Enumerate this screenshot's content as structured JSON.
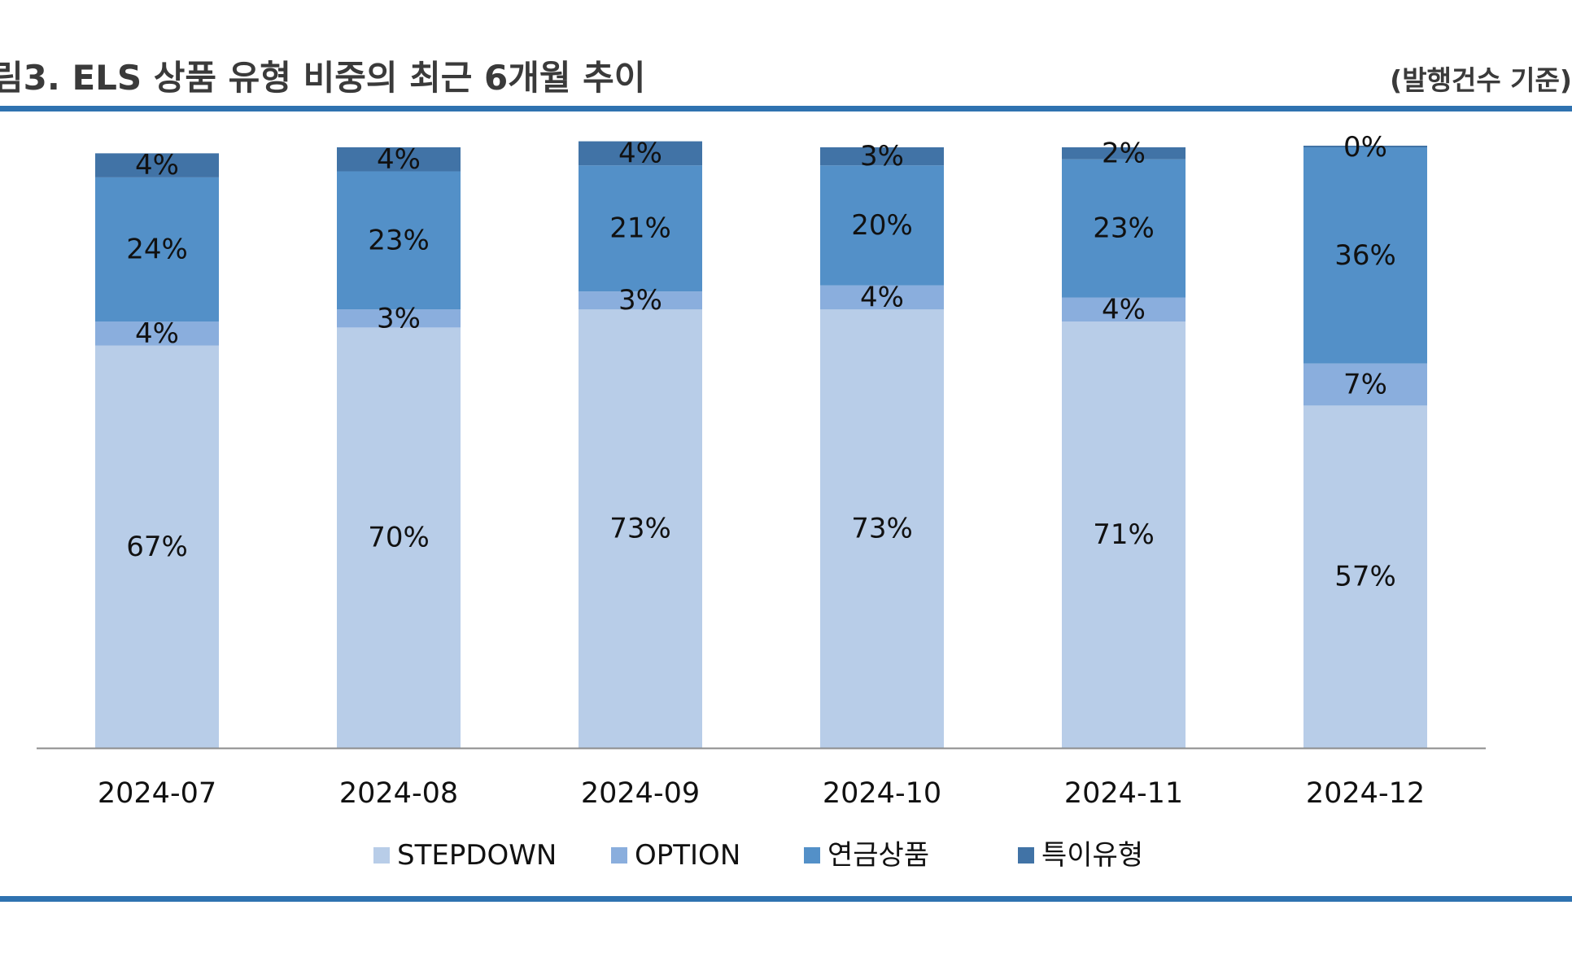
{
  "header": {
    "title": "림3. ELS 상품 유형 비중의 최근 6개월 추이",
    "basis": "(발행건수 기준)"
  },
  "colors": {
    "rule": "#2f72b0",
    "axis": "#8c8c8c"
  },
  "chart_data": {
    "type": "bar",
    "stacked": true,
    "categories": [
      "2024-07",
      "2024-08",
      "2024-09",
      "2024-10",
      "2024-11",
      "2024-12"
    ],
    "series": [
      {
        "name": "STEPDOWN",
        "color": "#b8cde8",
        "values": [
          67,
          70,
          73,
          73,
          71,
          57
        ]
      },
      {
        "name": "OPTION",
        "color": "#8aaedd",
        "values": [
          4,
          3,
          3,
          4,
          4,
          7
        ]
      },
      {
        "name": "연금상품",
        "color": "#5390c8",
        "values": [
          24,
          23,
          21,
          20,
          23,
          36
        ]
      },
      {
        "name": "특이유형",
        "color": "#4173a6",
        "values": [
          4,
          4,
          4,
          3,
          2,
          0
        ]
      }
    ],
    "data_labels": [
      [
        "67%",
        "70%",
        "73%",
        "73%",
        "71%",
        "57%"
      ],
      [
        "4%",
        "3%",
        "3%",
        "4%",
        "4%",
        "7%"
      ],
      [
        "24%",
        "23%",
        "21%",
        "20%",
        "23%",
        "36%"
      ],
      [
        "4%",
        "4%",
        "4%",
        "3%",
        "2%",
        "0%"
      ]
    ],
    "ylim": [
      0,
      100
    ],
    "grid": false,
    "legend_position": "bottom"
  }
}
